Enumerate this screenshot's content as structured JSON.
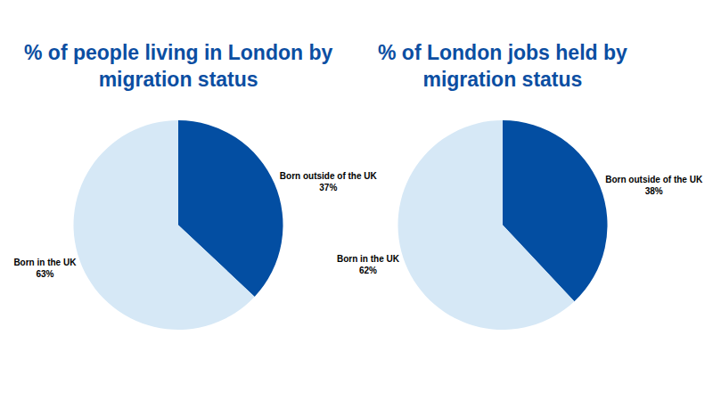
{
  "chart_data": [
    {
      "type": "pie",
      "title": "% of people living in London by migration status",
      "categories": [
        "Born outside of the UK",
        "Born in the UK"
      ],
      "values": [
        37,
        63
      ],
      "value_labels": [
        "37%",
        "63%"
      ],
      "colors": [
        "#034ea2",
        "#d6e8f6"
      ],
      "data_labels": true
    },
    {
      "type": "pie",
      "title": "% of London jobs held by migration status",
      "categories": [
        "Born outside of the UK",
        "Born in the UK"
      ],
      "values": [
        38,
        62
      ],
      "value_labels": [
        "38%",
        "62%"
      ],
      "colors": [
        "#034ea2",
        "#d6e8f6"
      ],
      "data_labels": true
    }
  ]
}
